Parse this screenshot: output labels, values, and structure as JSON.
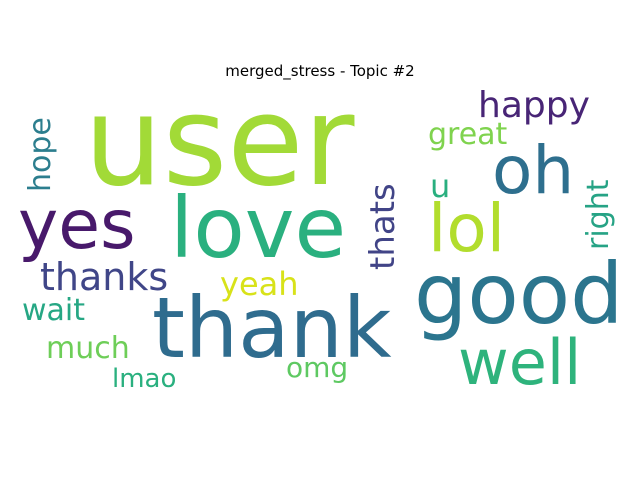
{
  "figure": {
    "title": "merged_stress - Topic #2"
  },
  "words": [
    {
      "id": "user",
      "text": "user",
      "color": "#a2da37"
    },
    {
      "id": "thank",
      "text": "thank",
      "color": "#2f6c8e"
    },
    {
      "id": "love",
      "text": "love",
      "color": "#2ab07f"
    },
    {
      "id": "good",
      "text": "good",
      "color": "#2b758e"
    },
    {
      "id": "yes",
      "text": "yes",
      "color": "#48196b"
    },
    {
      "id": "oh",
      "text": "oh",
      "color": "#2e6f8e"
    },
    {
      "id": "lol",
      "text": "lol",
      "color": "#b2dd2d"
    },
    {
      "id": "well",
      "text": "well",
      "color": "#2eb37c"
    },
    {
      "id": "thanks",
      "text": "thanks",
      "color": "#404688"
    },
    {
      "id": "happy",
      "text": "happy",
      "color": "#482576"
    },
    {
      "id": "yeah",
      "text": "yeah",
      "color": "#d8e219"
    },
    {
      "id": "wait",
      "text": "wait",
      "color": "#26a784"
    },
    {
      "id": "much",
      "text": "much",
      "color": "#6ece58"
    },
    {
      "id": "great",
      "text": "great",
      "color": "#7fd34e"
    },
    {
      "id": "thats",
      "text": "thats",
      "color": "#414487"
    },
    {
      "id": "u",
      "text": "u",
      "color": "#29af7f"
    },
    {
      "id": "right",
      "text": "right",
      "color": "#26a385"
    },
    {
      "id": "hope",
      "text": "hope",
      "color": "#2c7e8e"
    },
    {
      "id": "omg",
      "text": "omg",
      "color": "#5ec962"
    },
    {
      "id": "lmao",
      "text": "lmao",
      "color": "#2ab07f"
    }
  ]
}
